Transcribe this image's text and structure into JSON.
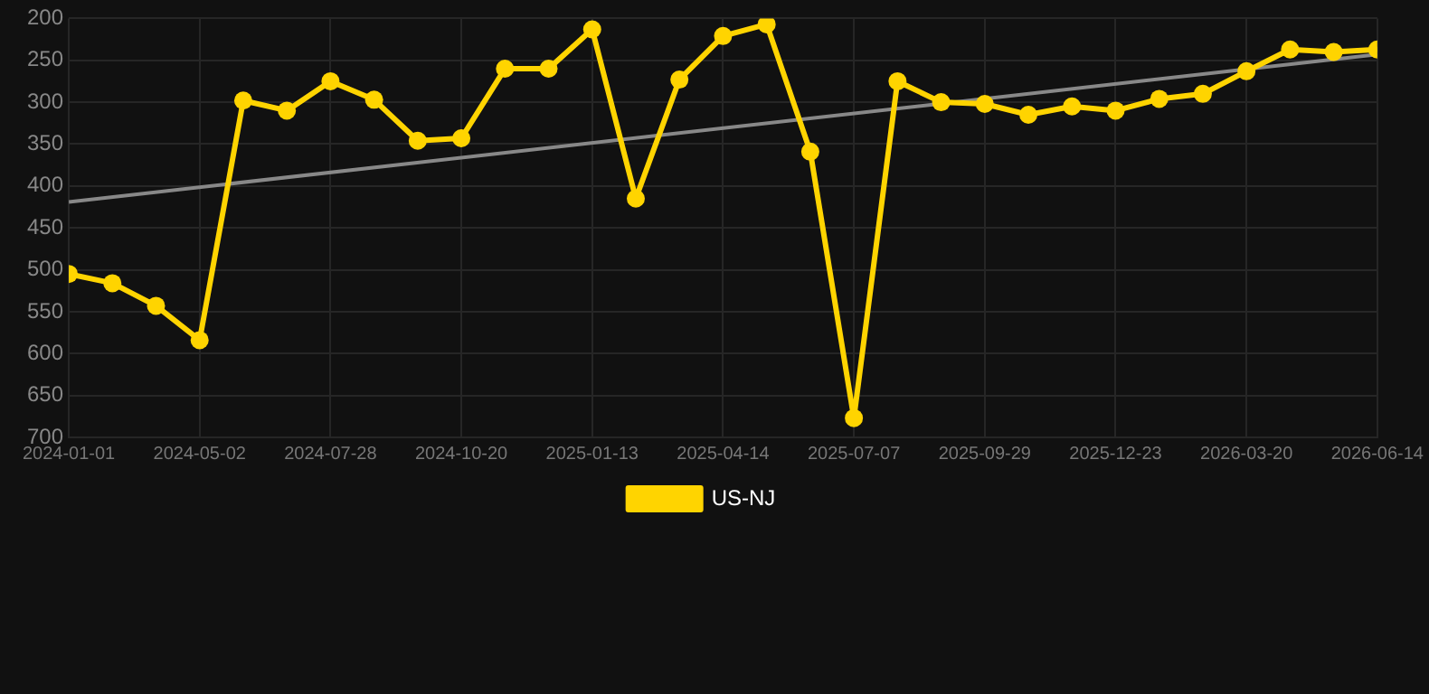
{
  "chart_data": {
    "type": "line",
    "categories": [
      "2024-01-01",
      null,
      null,
      "2024-05-02",
      null,
      null,
      "2024-07-28",
      null,
      null,
      "2024-10-20",
      null,
      null,
      "2025-01-13",
      null,
      null,
      "2025-04-14",
      null,
      null,
      "2025-07-07",
      null,
      null,
      "2025-09-29",
      null,
      null,
      "2025-12-23",
      null,
      null,
      "2026-03-20",
      null,
      null,
      "2026-06-14"
    ],
    "series": [
      {
        "name": "US-NJ",
        "color": "#ffd400",
        "marker": "circle",
        "values": [
          505,
          516,
          543,
          584,
          298,
          310,
          275,
          297,
          346,
          343,
          260,
          260,
          213,
          415,
          273,
          221,
          207,
          359,
          677,
          275,
          300,
          302,
          315,
          305,
          310,
          296,
          290,
          263,
          237,
          240,
          237
        ]
      },
      {
        "type": "line",
        "color": "#888888",
        "marker": "none",
        "values": [
          419,
          null,
          null,
          null,
          null,
          null,
          null,
          null,
          null,
          null,
          null,
          null,
          null,
          null,
          null,
          null,
          null,
          null,
          null,
          null,
          null,
          null,
          null,
          null,
          null,
          null,
          null,
          null,
          null,
          null,
          243
        ]
      }
    ],
    "ylim": [
      700,
      200
    ],
    "yticks": [
      200,
      250,
      300,
      350,
      400,
      450,
      500,
      550,
      600,
      650,
      700
    ],
    "grid": true,
    "legend": "bottom"
  }
}
